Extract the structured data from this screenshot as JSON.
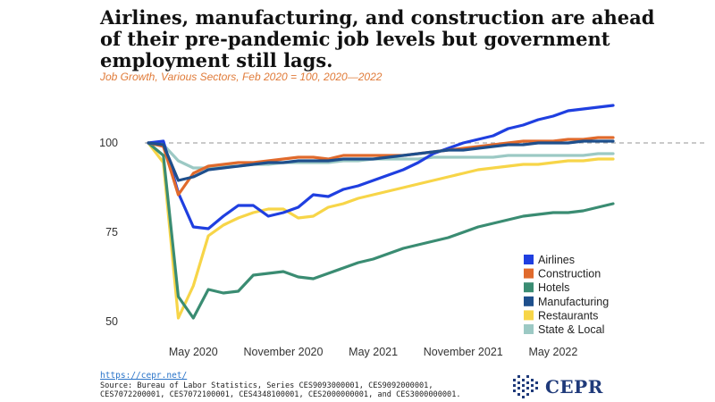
{
  "title": "Airlines, manufacturing, and construction are ahead of their pre-pandemic job levels but government employment still lags.",
  "subtitle": "Job Growth, Various Sectors, Feb 2020 = 100, 2020—2022",
  "footer": {
    "link": "https://cepr.net/",
    "source_line1": "Source: Bureau of Labor Statistics, Series CES9093000001, CES9092000001,",
    "source_line2": "CES7072200001, CES7072100001, CES4348100001, CES2000000001, and CES3000000001."
  },
  "logo": {
    "text": "CEPR",
    "color": "#1f3a7a"
  },
  "chart_data": {
    "type": "line",
    "x": [
      "2020-02",
      "2020-03",
      "2020-04",
      "2020-05",
      "2020-06",
      "2020-07",
      "2020-08",
      "2020-09",
      "2020-10",
      "2020-11",
      "2020-12",
      "2021-01",
      "2021-02",
      "2021-03",
      "2021-04",
      "2021-05",
      "2021-06",
      "2021-07",
      "2021-08",
      "2021-09",
      "2021-10",
      "2021-11",
      "2021-12",
      "2022-01",
      "2022-02",
      "2022-03",
      "2022-04",
      "2022-05",
      "2022-06",
      "2022-07",
      "2022-08",
      "2022-09"
    ],
    "xticks": [
      {
        "value": "2020-05",
        "label": "May 2020"
      },
      {
        "value": "2020-11",
        "label": "November 2020"
      },
      {
        "value": "2021-05",
        "label": "May 2021"
      },
      {
        "value": "2021-11",
        "label": "November 2021"
      },
      {
        "value": "2022-05",
        "label": "May 2022"
      }
    ],
    "yticks": [
      100,
      75,
      50
    ],
    "ylim": [
      45,
      115
    ],
    "reference_line": {
      "y": 100,
      "style": "dashed",
      "color": "#aaaaaa"
    },
    "legend_position": "bottom-right",
    "series": [
      {
        "name": "Airlines",
        "color": "#1f3fe0",
        "values": [
          100,
          100.5,
          86,
          76.5,
          76,
          79.5,
          82.5,
          82.5,
          79.5,
          80.5,
          82,
          85.5,
          85,
          87,
          88,
          89.5,
          91,
          92.5,
          94.5,
          97,
          98.5,
          100,
          101,
          102,
          104,
          105,
          106.5,
          107.5,
          109,
          109.5,
          110,
          110.5
        ]
      },
      {
        "name": "Construction",
        "color": "#e06a2c",
        "values": [
          100,
          99,
          85.5,
          91.5,
          93.5,
          94,
          94.5,
          94.5,
          95,
          95.5,
          96,
          96,
          95.5,
          96.5,
          96.5,
          96.5,
          96.5,
          96.5,
          97,
          97.5,
          98,
          98.5,
          99,
          99.5,
          100,
          100.5,
          100.5,
          100.5,
          101,
          101,
          101.5,
          101.5
        ]
      },
      {
        "name": "Hotels",
        "color": "#3a8c72",
        "values": [
          100,
          96.5,
          57,
          51,
          59,
          58,
          58.5,
          63,
          63.5,
          64,
          62.5,
          62,
          63.5,
          65,
          66.5,
          67.5,
          69,
          70.5,
          71.5,
          72.5,
          73.5,
          75,
          76.5,
          77.5,
          78.5,
          79.5,
          80,
          80.5,
          80.5,
          81,
          82,
          83
        ]
      },
      {
        "name": "Manufacturing",
        "color": "#1e4f8c",
        "values": [
          100,
          99.5,
          89.5,
          90.5,
          92.5,
          93,
          93.5,
          94,
          94.5,
          94.5,
          95,
          95,
          95,
          95.5,
          95.5,
          95.5,
          96,
          96.5,
          97,
          97.5,
          98,
          98,
          98.5,
          99,
          99.5,
          99.5,
          100,
          100,
          100,
          100.5,
          100.5,
          100.5
        ]
      },
      {
        "name": "Restaurants",
        "color": "#f7d548",
        "values": [
          100,
          94.5,
          51,
          60,
          74,
          77,
          79,
          80.5,
          81.5,
          81.5,
          79,
          79.5,
          82,
          83,
          84.5,
          85.5,
          86.5,
          87.5,
          88.5,
          89.5,
          90.5,
          91.5,
          92.5,
          93,
          93.5,
          94,
          94,
          94.5,
          95,
          95,
          95.5,
          95.5
        ]
      },
      {
        "name": "State & Local",
        "color": "#9cc9c4",
        "values": [
          100,
          99.5,
          95,
          93,
          93,
          93.5,
          93.5,
          94,
          94,
          94.5,
          94.5,
          94.5,
          94.5,
          95,
          95,
          95.5,
          95.5,
          95.5,
          95.5,
          96,
          96,
          96,
          96,
          96,
          96.5,
          96.5,
          96.5,
          96.5,
          96.5,
          96.5,
          97,
          97
        ]
      }
    ]
  }
}
